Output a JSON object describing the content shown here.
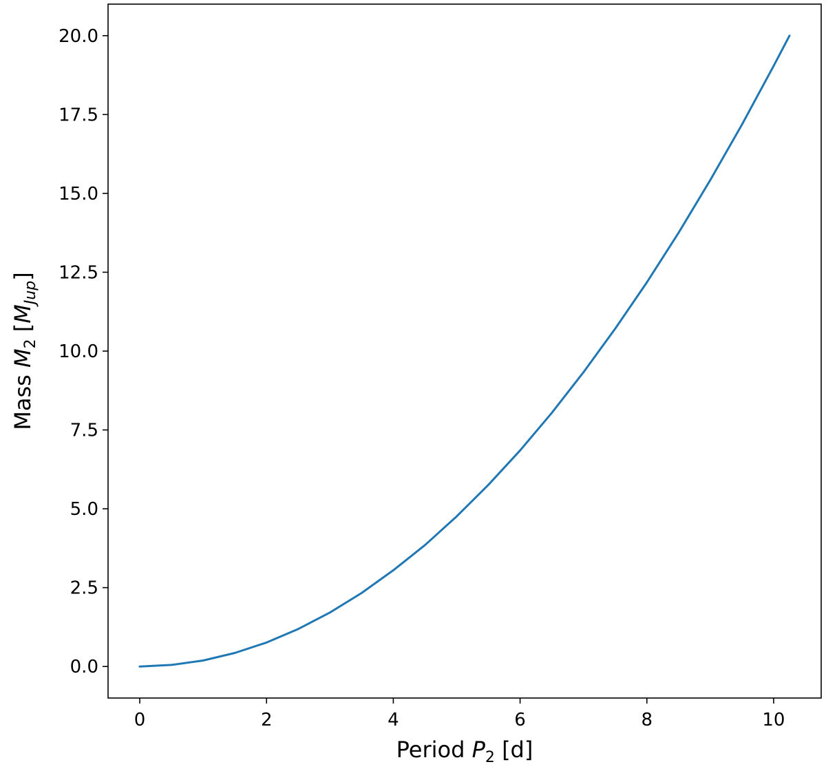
{
  "chart_data": {
    "type": "line",
    "title": "",
    "xlabel": {
      "prefix": "Period ",
      "symbol": "P",
      "subscript": "2",
      "suffix": " [d]"
    },
    "ylabel": {
      "prefix": "Mass ",
      "symbol": "M",
      "subscript": "2",
      "unit_symbol": "M",
      "unit_subscript": "Jup"
    },
    "xlim": [
      -0.5,
      10.75
    ],
    "ylim": [
      -1.0,
      21.0
    ],
    "xticks": [
      0,
      2,
      4,
      6,
      8,
      10
    ],
    "xtick_labels": [
      "0",
      "2",
      "4",
      "6",
      "8",
      "10"
    ],
    "yticks": [
      0,
      2.5,
      5,
      7.5,
      10,
      12.5,
      15,
      17.5,
      20
    ],
    "ytick_labels": [
      "0.0",
      "2.5",
      "5.0",
      "7.5",
      "10.0",
      "12.5",
      "15.0",
      "17.5",
      "20.0"
    ],
    "grid": false,
    "legend": false,
    "series": [
      {
        "color": "#1f77b4",
        "x": [
          0.0,
          0.5,
          1.0,
          1.5,
          2.0,
          2.5,
          3.0,
          3.5,
          4.0,
          4.5,
          5.0,
          5.5,
          6.0,
          6.5,
          7.0,
          7.5,
          8.0,
          8.5,
          9.0,
          9.5,
          10.0,
          10.25
        ],
        "y": [
          0.0,
          0.05,
          0.19,
          0.43,
          0.76,
          1.19,
          1.71,
          2.33,
          3.05,
          3.85,
          4.76,
          5.76,
          6.85,
          8.04,
          9.33,
          10.71,
          12.18,
          13.75,
          15.42,
          17.18,
          19.04,
          20.0
        ]
      }
    ]
  }
}
